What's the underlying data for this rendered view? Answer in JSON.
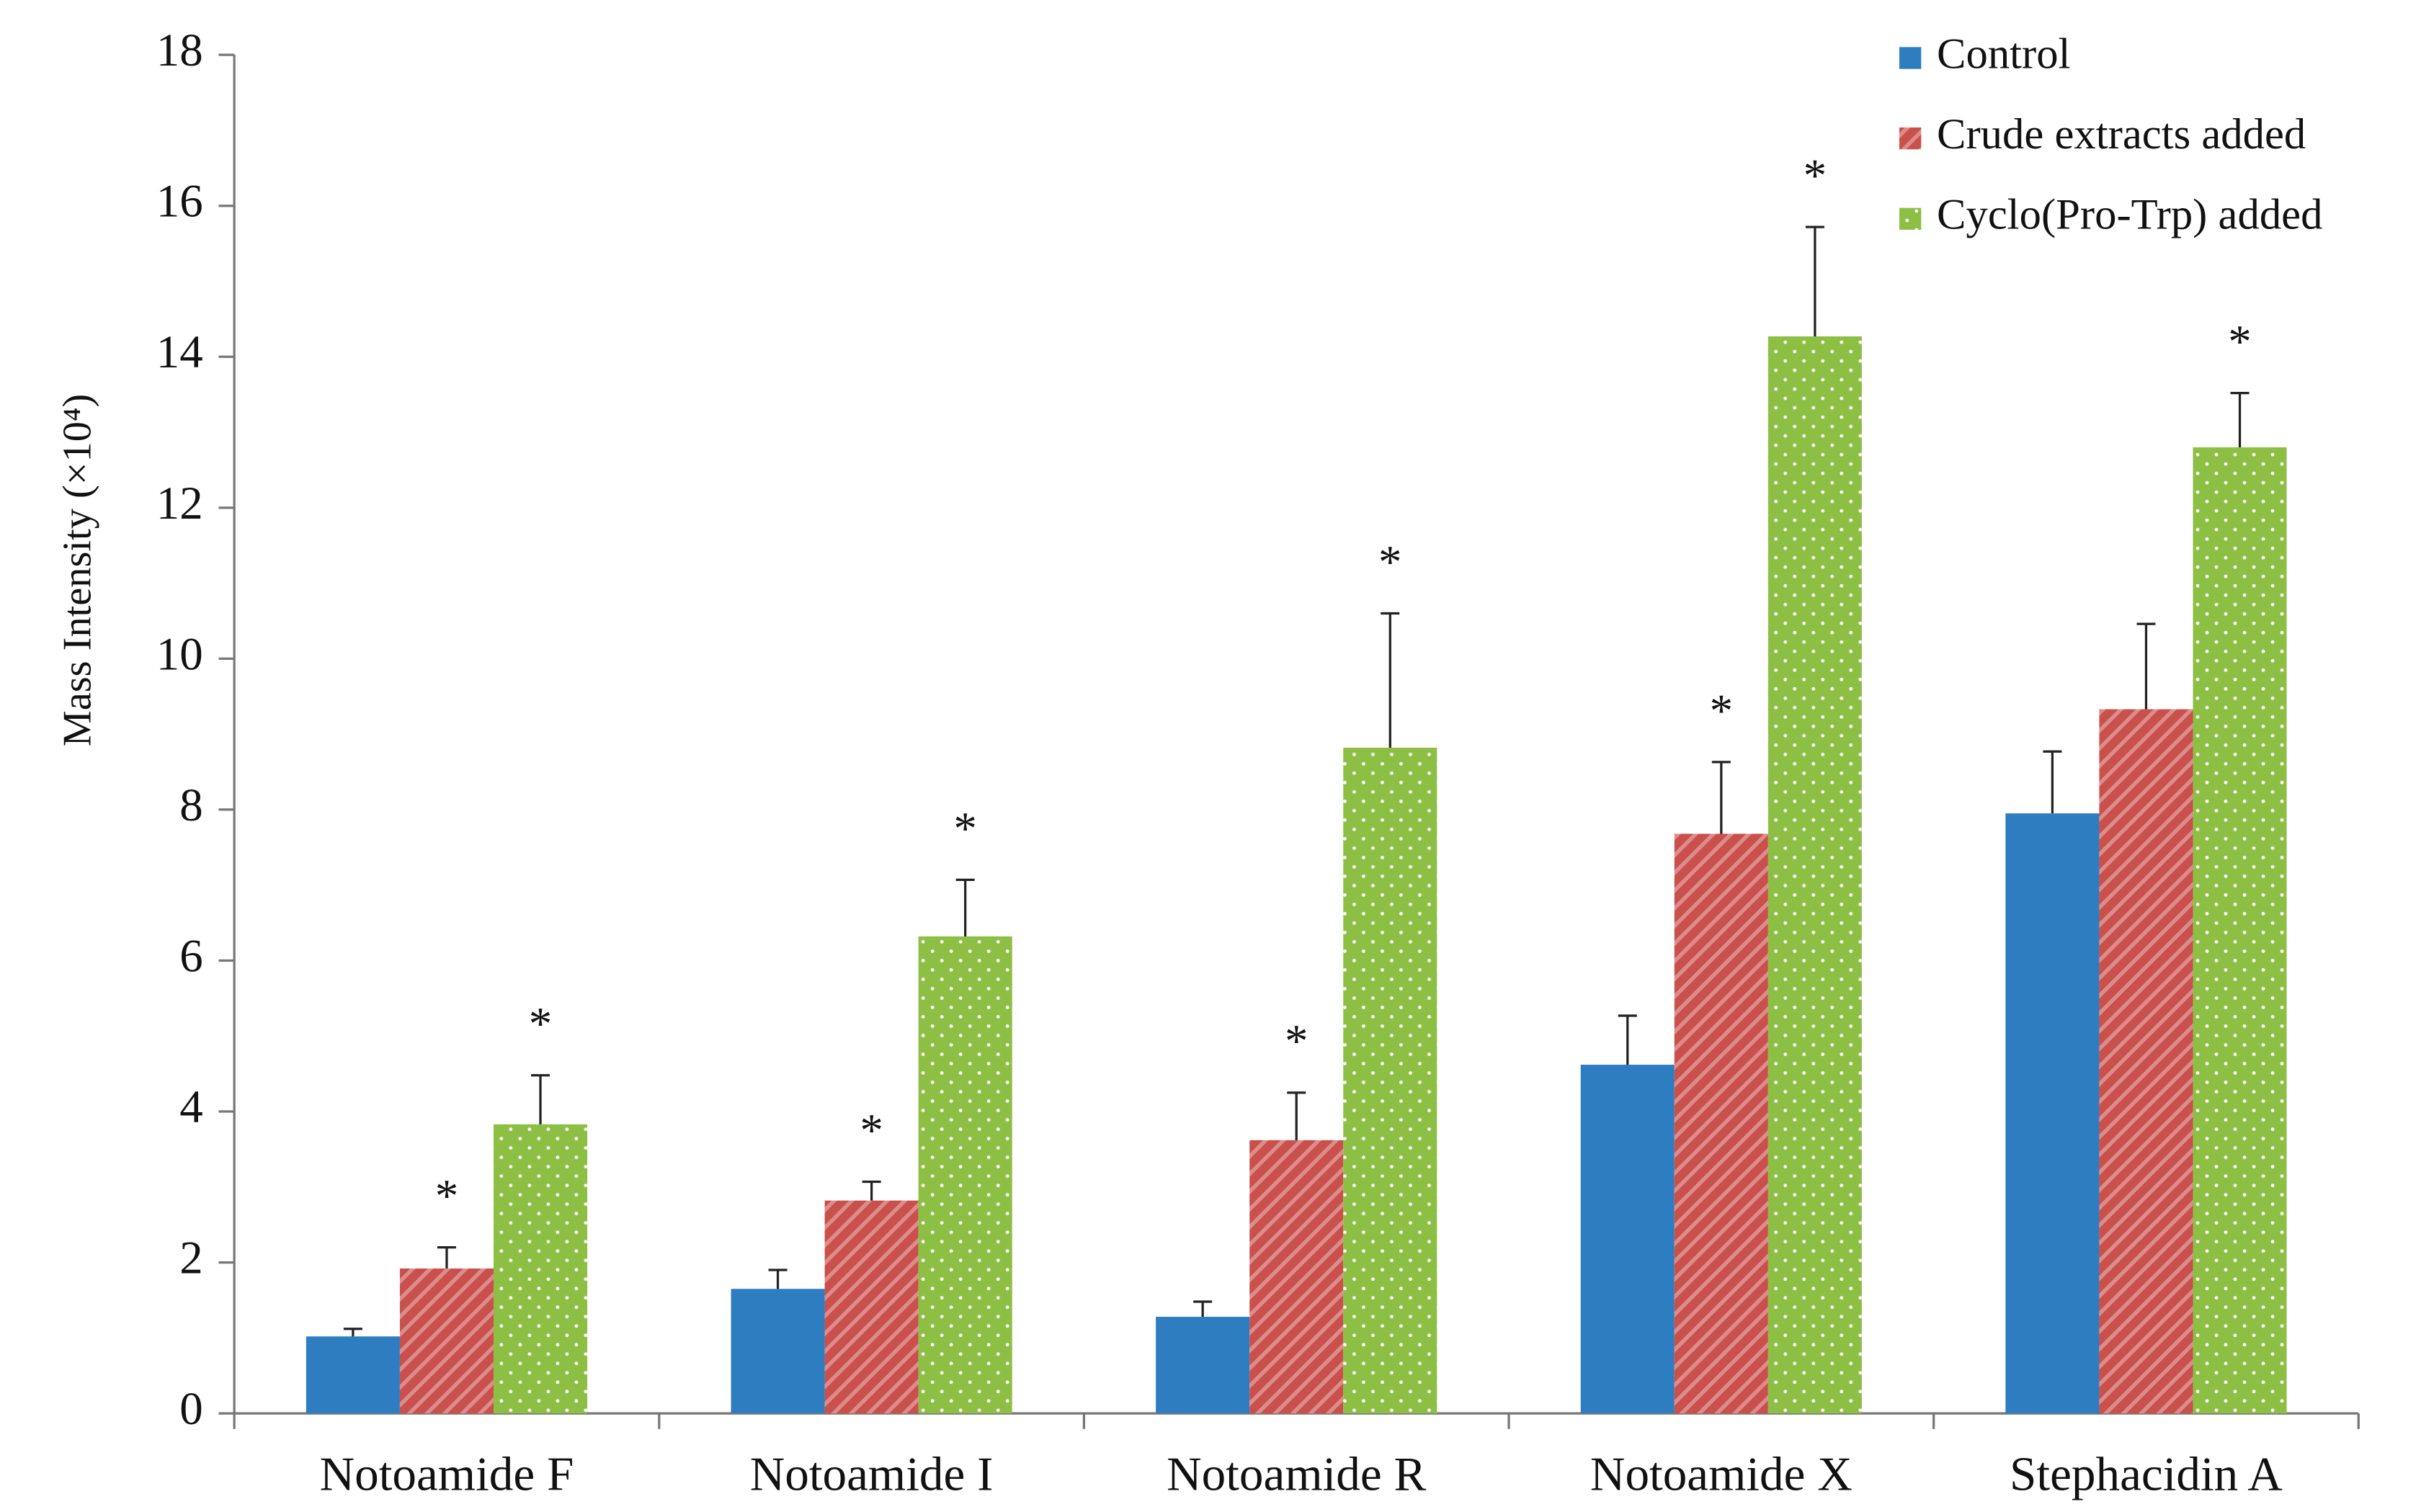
{
  "chart_data": {
    "type": "bar",
    "y_label": "Mass Intensity (×10⁴)",
    "categories": [
      "Notoamide F",
      "Notoamide I",
      "Notoamide R",
      "Notoamide X",
      "Stephacidin A"
    ],
    "series": [
      {
        "name": "Control",
        "color": "#2e7dc0",
        "pattern": "solid",
        "values": [
          1.02,
          1.65,
          1.28,
          4.62,
          7.95
        ],
        "errors": [
          0.1,
          0.25,
          0.2,
          0.65,
          0.82
        ],
        "significant": [
          false,
          false,
          false,
          false,
          false
        ]
      },
      {
        "name": "Crude extracts added",
        "color": "#c9504c",
        "pattern": "stripes",
        "values": [
          1.92,
          2.82,
          3.62,
          7.68,
          9.33
        ],
        "errors": [
          0.28,
          0.25,
          0.63,
          0.95,
          1.13
        ],
        "significant": [
          true,
          true,
          true,
          true,
          false
        ]
      },
      {
        "name": "Cyclo(Pro-Trp) added",
        "color": "#8dbf45",
        "pattern": "dots",
        "values": [
          3.83,
          6.32,
          8.82,
          14.27,
          12.8
        ],
        "errors": [
          0.65,
          0.75,
          1.78,
          1.45,
          0.72
        ],
        "significant": [
          true,
          true,
          true,
          true,
          true
        ]
      }
    ],
    "significance_label": "*",
    "ylim": [
      0,
      18
    ],
    "yticks": [
      0,
      2,
      4,
      6,
      8,
      10,
      12,
      14,
      16,
      18
    ],
    "legend": "top-right",
    "grid": false
  }
}
